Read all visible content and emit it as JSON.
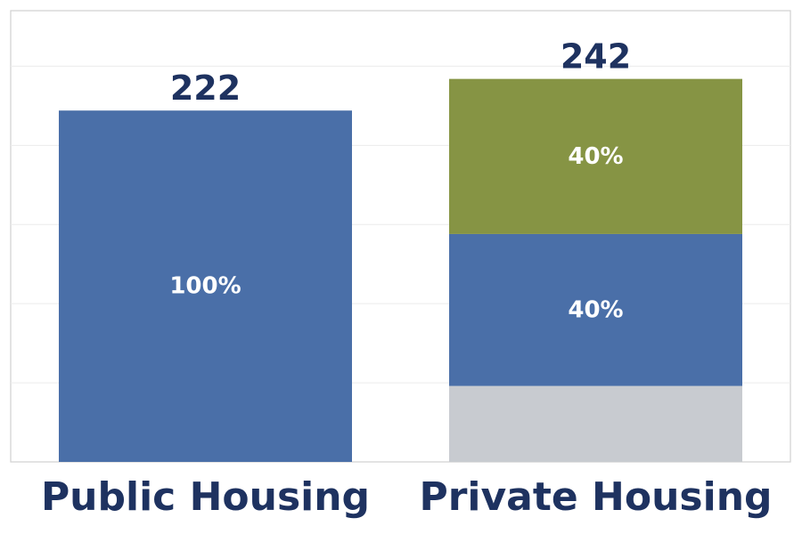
{
  "chart_data": {
    "type": "bar",
    "stacked": true,
    "categories": [
      "Public Housing",
      "Private Housing"
    ],
    "totals": [
      222,
      242
    ],
    "stacks": [
      {
        "category": "Public Housing",
        "segments": [
          {
            "value": 222,
            "label": "100%",
            "color": "#4a6fa8"
          }
        ]
      },
      {
        "category": "Private Housing",
        "segments": [
          {
            "value": 48,
            "label": "",
            "color": "#c8cbd0"
          },
          {
            "value": 96,
            "label": "40%",
            "color": "#4a6fa8"
          },
          {
            "value": 98,
            "label": "40%",
            "color": "#869444"
          }
        ]
      }
    ],
    "title": "",
    "xlabel": "",
    "ylabel": "",
    "ylim": [
      0,
      270
    ],
    "grid": true,
    "legend": "none",
    "total_label_color": "#1e3260",
    "category_label_color": "#1e3260"
  }
}
